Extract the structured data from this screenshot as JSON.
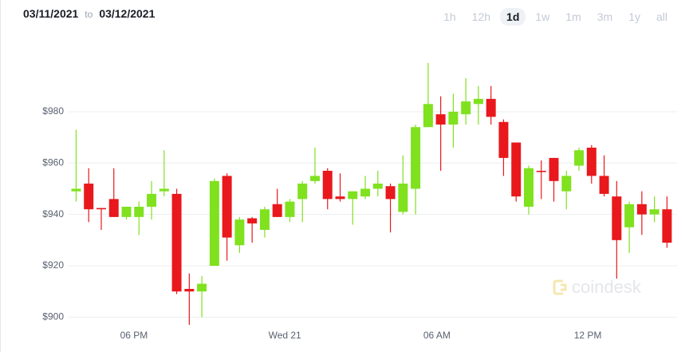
{
  "chart_data": {
    "type": "candlestick",
    "date_from": "03/11/2021",
    "date_separator": "to",
    "date_to": "03/12/2021",
    "ranges": [
      "1h",
      "12h",
      "1d",
      "1w",
      "1m",
      "3m",
      "1y",
      "all"
    ],
    "selected_range": 2,
    "watermark": "coindesk",
    "categories": [
      null,
      null,
      null,
      null,
      null,
      null,
      null,
      null,
      null,
      null,
      null,
      null,
      null,
      null,
      null,
      null,
      null,
      null,
      null,
      null,
      null,
      null,
      null,
      null,
      null,
      null,
      null,
      null,
      null,
      null,
      null,
      null,
      null,
      null,
      null,
      null,
      null,
      null,
      null,
      null,
      null,
      null,
      null,
      null,
      null,
      null,
      null,
      null
    ],
    "open": [
      949,
      952,
      942.5,
      946,
      939,
      939,
      943,
      949,
      948,
      911,
      910,
      920,
      955,
      928,
      938.5,
      934,
      944,
      939,
      946,
      953,
      957,
      947,
      946,
      947,
      950,
      951,
      941,
      950,
      974,
      979,
      975,
      979,
      983,
      985,
      976,
      968,
      943,
      957,
      962,
      949,
      959,
      966,
      955,
      947,
      935,
      944,
      940,
      942
    ],
    "high": [
      973,
      958,
      942.5,
      958,
      943,
      945,
      953,
      965,
      950,
      917,
      916,
      954,
      956,
      939,
      939,
      943,
      950,
      946,
      953,
      966,
      958,
      956,
      949,
      955,
      957,
      952,
      963,
      975,
      999,
      986,
      987,
      993,
      990,
      990,
      977,
      968,
      959,
      961,
      962,
      957,
      966,
      967,
      963,
      953,
      945,
      949,
      947,
      947
    ],
    "low": [
      945,
      937,
      934,
      939,
      938,
      932,
      938,
      947,
      909,
      897,
      900,
      920,
      922,
      925,
      929,
      931,
      939,
      937,
      937,
      952,
      942,
      945,
      936,
      946,
      947,
      933,
      940,
      940,
      974,
      957,
      966,
      975,
      975,
      975,
      955,
      945,
      940,
      946,
      945,
      942,
      957,
      952,
      947,
      915,
      925,
      932,
      937,
      927
    ],
    "close": [
      950,
      942,
      942,
      939,
      943,
      943,
      948,
      950,
      910,
      910,
      913,
      953,
      931,
      938,
      936.5,
      942,
      939,
      945,
      952,
      955,
      946,
      946,
      949,
      950,
      952,
      946,
      952,
      974,
      983,
      975,
      980,
      984,
      985,
      978,
      962,
      947,
      958,
      956.5,
      953,
      955,
      965,
      955,
      948,
      930,
      944,
      940,
      942,
      929
    ],
    "up_color": "#80e11f",
    "down_color": "#e8181c",
    "xlim": [
      -0.6,
      47.8
    ],
    "xticks": [
      {
        "value": 4.6,
        "label": "06 PM"
      },
      {
        "value": 16.6,
        "label": "Wed 21"
      },
      {
        "value": 28.7,
        "label": "06 AM"
      },
      {
        "value": 40.7,
        "label": "12 PM"
      }
    ],
    "ylim": [
      897,
      1000
    ],
    "yticks": [
      {
        "value": 900,
        "label": "$900"
      },
      {
        "value": 920,
        "label": "$920"
      },
      {
        "value": 940,
        "label": "$940"
      },
      {
        "value": 960,
        "label": "$960"
      },
      {
        "value": 980,
        "label": "$980"
      }
    ],
    "grid": true
  }
}
